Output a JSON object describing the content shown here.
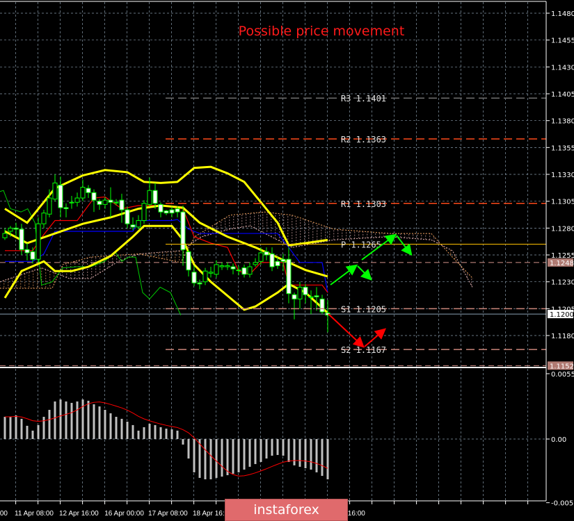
{
  "chart_data": {
    "type": "candlestick",
    "title": "Possible price movement",
    "colors": {
      "background": "#000000",
      "grid": "#8899aa",
      "bull_outline": "#00ff00",
      "bear_body": "#ffffff",
      "bollinger": "#ffff00",
      "tenkan": "#ff0000",
      "kijun": "#0000ff",
      "chikou": "#00cc00",
      "span_a": "#e0b0b0",
      "span_b": "#f4a460",
      "title": "#ff0000",
      "arrow_up": "#00ff00",
      "arrow_down": "#ff0000",
      "macd_hist": "#c0c0c0",
      "macd_signal": "#ff0000"
    },
    "price_axis": {
      "ylim": [
        1.11415,
        1.1492
      ],
      "ticks": [
        "1.1480",
        "1.1455",
        "1.1430",
        "1.1405",
        "1.1380",
        "1.1355",
        "1.1330",
        "1.1305",
        "1.1280",
        "1.1255",
        "1.1230",
        "1.1205",
        "1.1180"
      ],
      "markers": [
        {
          "label": "1.1248",
          "value": 1.1248,
          "style": "brown"
        },
        {
          "label": "1.1200",
          "value": 1.12,
          "style": "white"
        },
        {
          "label": "1.1152",
          "value": 1.1152,
          "style": "brown"
        }
      ]
    },
    "time_axis": {
      "labels": [
        {
          "label": "00",
          "candle": -0.9
        },
        {
          "label": "11 Apr 08:00",
          "candle": 1.75
        },
        {
          "label": "12 Apr 16:00",
          "candle": 9.75
        },
        {
          "label": "16 Apr 00:00",
          "candle": 17.9
        },
        {
          "label": "17 Apr 08:00",
          "candle": 25.75
        },
        {
          "label": "18 Apr 16:00",
          "candle": 33.75
        },
        {
          "label": "16:00",
          "candle": 61.6
        }
      ]
    },
    "candles": [
      [
        1.1271,
        1.128,
        1.1269,
        1.1275
      ],
      [
        1.1277,
        1.1282,
        1.1272,
        1.128
      ],
      [
        1.128,
        1.1285,
        1.1272,
        1.1279
      ],
      [
        1.1279,
        1.1284,
        1.1255,
        1.126
      ],
      [
        1.126,
        1.1266,
        1.125,
        1.1257
      ],
      [
        1.1258,
        1.1262,
        1.1247,
        1.1251
      ],
      [
        1.1251,
        1.129,
        1.1248,
        1.1284
      ],
      [
        1.1284,
        1.1297,
        1.128,
        1.1294
      ],
      [
        1.1293,
        1.1316,
        1.129,
        1.1308
      ],
      [
        1.1307,
        1.133,
        1.1305,
        1.1322
      ],
      [
        1.132,
        1.1328,
        1.129,
        1.1299
      ],
      [
        1.1299,
        1.1303,
        1.129,
        1.1298
      ],
      [
        1.1304,
        1.131,
        1.1298,
        1.1304
      ],
      [
        1.1304,
        1.1313,
        1.13,
        1.1308
      ],
      [
        1.1308,
        1.1325,
        1.1305,
        1.1318
      ],
      [
        1.1317,
        1.132,
        1.1308,
        1.1313
      ],
      [
        1.1313,
        1.1316,
        1.1295,
        1.1306
      ],
      [
        1.1305,
        1.1307,
        1.1297,
        1.1302
      ],
      [
        1.1302,
        1.1309,
        1.1298,
        1.1306
      ],
      [
        1.1306,
        1.1318,
        1.129,
        1.1304
      ],
      [
        1.1304,
        1.1307,
        1.1301,
        1.1304
      ],
      [
        1.1306,
        1.1312,
        1.1285,
        1.1297
      ],
      [
        1.1297,
        1.13,
        1.128,
        1.1284
      ],
      [
        1.1283,
        1.129,
        1.1278,
        1.1281
      ],
      [
        1.1281,
        1.1292,
        1.1279,
        1.1287
      ],
      [
        1.1287,
        1.1306,
        1.1284,
        1.1303
      ],
      [
        1.1302,
        1.1327,
        1.13,
        1.1315
      ],
      [
        1.1315,
        1.1322,
        1.1298,
        1.1303
      ],
      [
        1.1302,
        1.1304,
        1.129,
        1.1295
      ],
      [
        1.1296,
        1.1297,
        1.1292,
        1.1294
      ],
      [
        1.1297,
        1.13,
        1.129,
        1.1294
      ],
      [
        1.1298,
        1.13,
        1.129,
        1.1295
      ],
      [
        1.1295,
        1.1301,
        1.1245,
        1.126
      ],
      [
        1.1258,
        1.126,
        1.1235,
        1.1241
      ],
      [
        1.1239,
        1.1245,
        1.1226,
        1.1229
      ],
      [
        1.1229,
        1.1232,
        1.1223,
        1.1228
      ],
      [
        1.123,
        1.1243,
        1.1227,
        1.124
      ],
      [
        1.1238,
        1.1244,
        1.1234,
        1.1239
      ],
      [
        1.1237,
        1.125,
        1.1234,
        1.1246
      ],
      [
        1.1244,
        1.1248,
        1.1241,
        1.1245
      ],
      [
        1.1244,
        1.1248,
        1.1241,
        1.1245
      ],
      [
        1.1244,
        1.1247,
        1.1237,
        1.1242
      ],
      [
        1.1241,
        1.1245,
        1.1236,
        1.1241
      ],
      [
        1.1243,
        1.1246,
        1.1234,
        1.1237
      ],
      [
        1.1237,
        1.1248,
        1.1234,
        1.1244
      ],
      [
        1.1246,
        1.1252,
        1.1244,
        1.1248
      ],
      [
        1.1249,
        1.1262,
        1.1246,
        1.1257
      ],
      [
        1.1258,
        1.1262,
        1.125,
        1.1255
      ],
      [
        1.1256,
        1.1262,
        1.124,
        1.1244
      ],
      [
        1.1249,
        1.1253,
        1.1242,
        1.1245
      ],
      [
        1.1251,
        1.1256,
        1.124,
        1.1249
      ],
      [
        1.1251,
        1.1262,
        1.121,
        1.1219
      ],
      [
        1.1218,
        1.122,
        1.1195,
        1.1214
      ],
      [
        1.1214,
        1.123,
        1.1205,
        1.1225
      ],
      [
        1.1225,
        1.1228,
        1.121,
        1.1218
      ],
      [
        1.1216,
        1.1222,
        1.12,
        1.1216
      ],
      [
        1.1217,
        1.1225,
        1.1203,
        1.1216
      ],
      [
        1.1214,
        1.1218,
        1.12,
        1.1202
      ],
      [
        1.1201,
        1.1213,
        1.1183,
        1.1199
      ]
    ],
    "indicators": {
      "bollinger_upper": [
        [
          0,
          1.1298
        ],
        [
          4,
          1.1285
        ],
        [
          9,
          1.1317
        ],
        [
          14,
          1.1329
        ],
        [
          18,
          1.1334
        ],
        [
          22,
          1.1332
        ],
        [
          25,
          1.1323
        ],
        [
          28,
          1.1322
        ],
        [
          31,
          1.1323
        ],
        [
          34,
          1.1336
        ],
        [
          37,
          1.1337
        ],
        [
          40,
          1.1331
        ],
        [
          43,
          1.1323
        ],
        [
          46,
          1.1304
        ],
        [
          49,
          1.1285
        ],
        [
          51,
          1.1264
        ],
        [
          54,
          1.1266
        ],
        [
          58,
          1.1269
        ]
      ],
      "bollinger_middle": [
        [
          0,
          1.1277
        ],
        [
          4,
          1.1266
        ],
        [
          9,
          1.1275
        ],
        [
          14,
          1.1284
        ],
        [
          19,
          1.129
        ],
        [
          24,
          1.1298
        ],
        [
          28,
          1.1301
        ],
        [
          32,
          1.1299
        ],
        [
          35,
          1.1285
        ],
        [
          40,
          1.1272
        ],
        [
          45,
          1.1262
        ],
        [
          51,
          1.1248
        ],
        [
          54,
          1.1241
        ],
        [
          58,
          1.1235
        ]
      ],
      "bollinger_lower": [
        [
          0,
          1.1215
        ],
        [
          3,
          1.124
        ],
        [
          7,
          1.1249
        ],
        [
          9,
          1.124
        ],
        [
          12,
          1.124
        ],
        [
          15,
          1.1244
        ],
        [
          19,
          1.1254
        ],
        [
          23,
          1.1272
        ],
        [
          25,
          1.1282
        ],
        [
          30,
          1.1282
        ],
        [
          32,
          1.1269
        ],
        [
          34,
          1.1246
        ],
        [
          37,
          1.123
        ],
        [
          40,
          1.1217
        ],
        [
          43,
          1.1204
        ],
        [
          45,
          1.1207
        ],
        [
          49,
          1.122
        ],
        [
          51,
          1.1228
        ],
        [
          54,
          1.122
        ],
        [
          58,
          1.1201
        ]
      ],
      "tenkan": [
        [
          0,
          1.1259
        ],
        [
          5,
          1.1259
        ],
        [
          7,
          1.1274
        ],
        [
          9,
          1.1287
        ],
        [
          13,
          1.1287
        ],
        [
          16,
          1.1308
        ],
        [
          18,
          1.1309
        ],
        [
          21,
          1.1298
        ],
        [
          24,
          1.1301
        ],
        [
          28,
          1.1301
        ],
        [
          32,
          1.1298
        ],
        [
          34,
          1.1272
        ],
        [
          37,
          1.1266
        ],
        [
          40,
          1.1262
        ],
        [
          42,
          1.124
        ],
        [
          44,
          1.1237
        ],
        [
          46,
          1.1248
        ],
        [
          50,
          1.1248
        ],
        [
          51,
          1.1227
        ],
        [
          57,
          1.1227
        ],
        [
          58,
          1.122
        ]
      ],
      "kijun": [
        [
          0,
          1.1249
        ],
        [
          5,
          1.1249
        ],
        [
          7,
          1.1256
        ],
        [
          9,
          1.1277
        ],
        [
          23,
          1.1277
        ],
        [
          24,
          1.1287
        ],
        [
          30,
          1.1287
        ],
        [
          31,
          1.1288
        ],
        [
          33,
          1.1279
        ],
        [
          35,
          1.1275
        ],
        [
          49,
          1.1275
        ],
        [
          51,
          1.1262
        ],
        [
          53,
          1.1248
        ],
        [
          57,
          1.1248
        ],
        [
          58,
          1.122
        ]
      ],
      "chikou": [
        [
          -0.9,
          1.1314
        ],
        [
          -0.25,
          1.1315
        ],
        [
          1,
          1.1298
        ],
        [
          2.9,
          1.1295
        ],
        [
          4.1,
          1.1298
        ],
        [
          5.4,
          1.1285
        ],
        [
          6.6,
          1.1227
        ],
        [
          8.5,
          1.123
        ],
        [
          10.4,
          1.1243
        ],
        [
          12.9,
          1.1244
        ],
        [
          15.4,
          1.1244
        ],
        [
          17.9,
          1.1249
        ],
        [
          19.75,
          1.1258
        ],
        [
          21,
          1.1249
        ],
        [
          22.25,
          1.1253
        ],
        [
          23.5,
          1.1253
        ],
        [
          24.75,
          1.122
        ],
        [
          26,
          1.1214
        ],
        [
          27.9,
          1.1225
        ],
        [
          29.75,
          1.122
        ],
        [
          31.6,
          1.1199
        ]
      ],
      "span_a": [
        [
          -0.9,
          1.123
        ],
        [
          6.6,
          1.1243
        ],
        [
          11.6,
          1.1233
        ],
        [
          15.4,
          1.1233
        ],
        [
          20.4,
          1.1249
        ],
        [
          24.1,
          1.1256
        ],
        [
          31.6,
          1.1259
        ],
        [
          35.4,
          1.1272
        ],
        [
          40.4,
          1.1279
        ],
        [
          44.1,
          1.1282
        ],
        [
          51.6,
          1.1262
        ],
        [
          59.1,
          1.1269
        ],
        [
          69.1,
          1.1272
        ],
        [
          76.6,
          1.1269
        ],
        [
          80.4,
          1.1259
        ],
        [
          84.1,
          1.1224
        ]
      ],
      "span_b": [
        [
          -0.9,
          1.1224
        ],
        [
          8.5,
          1.1224
        ],
        [
          10.4,
          1.1246
        ],
        [
          15.4,
          1.1253
        ],
        [
          24.1,
          1.1256
        ],
        [
          31.6,
          1.1248
        ],
        [
          34.1,
          1.1272
        ],
        [
          40.4,
          1.1292
        ],
        [
          46.6,
          1.1295
        ],
        [
          51.6,
          1.1292
        ],
        [
          59.1,
          1.1279
        ],
        [
          69.1,
          1.1275
        ],
        [
          76.6,
          1.1275
        ],
        [
          80.4,
          1.1253
        ],
        [
          84.1,
          1.1233
        ]
      ]
    },
    "pivots": [
      {
        "label": "R3 1.1401",
        "value": 1.1401,
        "color": "#707070",
        "dash": true
      },
      {
        "label": "R2 1.1363",
        "value": 1.1363,
        "color": "#ff4a1a",
        "dash": true
      },
      {
        "label": "R1 1.1303",
        "value": 1.1303,
        "color": "#ff4a1a",
        "dash": true
      },
      {
        "label": "P 1.1265",
        "value": 1.1265,
        "color": "#ffc000",
        "dash": false
      },
      {
        "label": "S1 1.1205",
        "value": 1.1205,
        "color": "#c9857a",
        "dash": true
      },
      {
        "label": "S2 1.1167",
        "value": 1.1167,
        "color": "#c9857a",
        "dash": true
      }
    ],
    "macd": {
      "ylim": [
        -0.0058,
        0.0062
      ],
      "ticks": [
        "0.00553",
        "0.00",
        "-0.00539"
      ],
      "histogram": [
        0.00188,
        0.00188,
        0.002,
        0.00171,
        0.00112,
        0.00071,
        0.00118,
        0.00188,
        0.00247,
        0.00318,
        0.00335,
        0.00318,
        0.00306,
        0.00318,
        0.00335,
        0.00324,
        0.00294,
        0.00276,
        0.00247,
        0.00218,
        0.00188,
        0.00171,
        0.00147,
        0.00118,
        0.00071,
        0.001,
        0.00129,
        0.00118,
        0.001,
        0.00088,
        0.00082,
        0.00071,
        -0.00047,
        -0.00165,
        -0.00282,
        -0.00329,
        -0.00341,
        -0.00341,
        -0.00329,
        -0.00318,
        -0.00306,
        -0.00294,
        -0.00282,
        -0.00259,
        -0.00235,
        -0.00212,
        -0.00194,
        -0.00165,
        -0.00141,
        -0.00135,
        -0.00141,
        -0.00194,
        -0.00223,
        -0.00235,
        -0.00247,
        -0.00259,
        -0.00282,
        -0.00312,
        -0.00341
      ]
    }
  },
  "watermark": {
    "brand": "instaforex"
  }
}
